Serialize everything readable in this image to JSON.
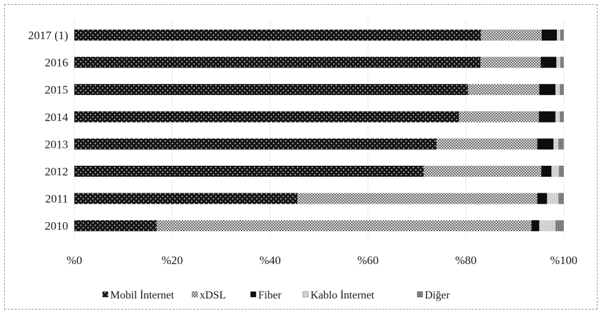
{
  "chart_data": {
    "type": "bar",
    "orientation": "horizontal",
    "stacked": true,
    "categories": [
      "2017 (1)",
      "2016",
      "2015",
      "2014",
      "2013",
      "2012",
      "2011",
      "2010"
    ],
    "series": [
      {
        "name": "Mobil İnternet",
        "values": [
          83.1,
          83.0,
          80.4,
          78.6,
          74.0,
          71.4,
          45.6,
          16.8
        ]
      },
      {
        "name": "xDSL",
        "values": [
          12.4,
          12.3,
          14.6,
          16.3,
          20.6,
          24.0,
          49.0,
          76.6
        ]
      },
      {
        "name": "Fiber",
        "values": [
          3.1,
          3.2,
          3.3,
          3.4,
          3.3,
          2.1,
          2.0,
          1.6
        ]
      },
      {
        "name": "Kablo İnternet",
        "values": [
          0.7,
          0.8,
          0.9,
          0.9,
          1.0,
          1.5,
          2.3,
          3.3
        ]
      },
      {
        "name": "Diğer",
        "values": [
          0.7,
          0.7,
          0.8,
          0.8,
          1.1,
          1.0,
          1.1,
          1.7
        ]
      }
    ],
    "colors": {
      "Mobil İnternet": "#1a1a1a",
      "xDSL": "#7a7a7a",
      "Fiber": "#0d0d0d",
      "Kablo İnternet": "#c8c8c8",
      "Diğer": "#8c8c8c"
    },
    "x_ticks": [
      "%0",
      "%20",
      "%40",
      "%60",
      "%80",
      "%100"
    ],
    "xlim": [
      0,
      100
    ],
    "grid": "vertical-dotted",
    "legend_position": "bottom"
  }
}
